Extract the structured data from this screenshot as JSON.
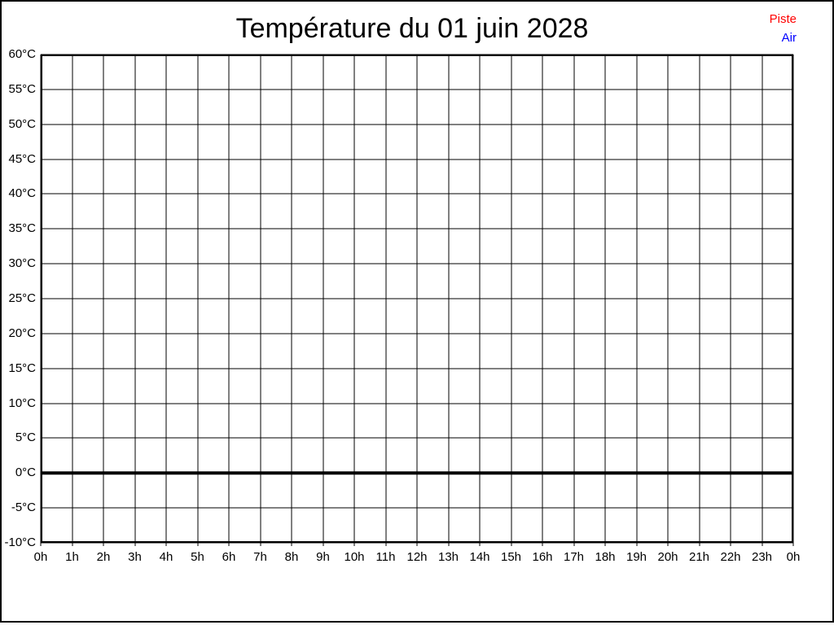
{
  "page": {
    "background": "#ffffff",
    "border_color": "#000000"
  },
  "chart_data": {
    "type": "line",
    "title": "Température du 01 juin 2028",
    "xlabel": "",
    "ylabel": "",
    "xlim": [
      0,
      24
    ],
    "ylim": [
      -10,
      60
    ],
    "y_tick_step": 5,
    "x_tick_labels": [
      "0h",
      "1h",
      "2h",
      "3h",
      "4h",
      "5h",
      "6h",
      "7h",
      "8h",
      "9h",
      "10h",
      "11h",
      "12h",
      "13h",
      "14h",
      "15h",
      "16h",
      "17h",
      "18h",
      "19h",
      "20h",
      "21h",
      "22h",
      "23h",
      "0h"
    ],
    "y_tick_labels": [
      "60°C",
      "55°C",
      "50°C",
      "45°C",
      "40°C",
      "35°C",
      "30°C",
      "25°C",
      "20°C",
      "15°C",
      "10°C",
      "5°C",
      "0°C",
      "-5°C",
      "-10°C"
    ],
    "grid": true,
    "grid_color": "#000000",
    "axis_color": "#000000",
    "zero_line": {
      "value": 0,
      "color": "#000000",
      "width": 4
    },
    "legend_position": "top-right",
    "series": [
      {
        "name": "Piste",
        "color": "#ff0000",
        "values": []
      },
      {
        "name": "Air",
        "color": "#0000ff",
        "values": []
      }
    ]
  }
}
